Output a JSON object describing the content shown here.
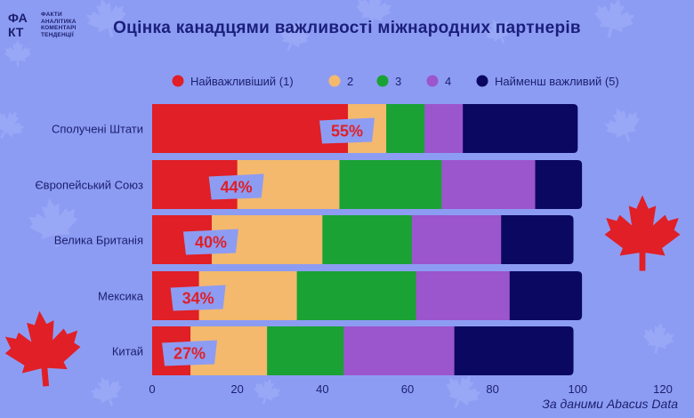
{
  "logo": {
    "mark": "ФАКТ",
    "lines": [
      "ФАКТИ",
      "АНАЛІТИКА",
      "КОМЕНТАРІ",
      "ТЕНДЕНЦІЇ"
    ]
  },
  "title": "Оцінка канадцями важливості міжнародних партнерів",
  "source": "За даними Abacus Data",
  "colors": {
    "background": "#8d9cf3",
    "r1": "#e01f26",
    "r2": "#f4b96d",
    "r3": "#1aa234",
    "r4": "#9b55cd",
    "r5": "#0a0860",
    "label_box": "#8d9cf3",
    "label_text": "#e01f26"
  },
  "chart_data": {
    "type": "bar",
    "orientation": "horizontal",
    "stacked": true,
    "categories": [
      "Сполучені Штати",
      "Європейський Союз",
      "Велика Британія",
      "Мексика",
      "Китай"
    ],
    "series": [
      {
        "name": "Найважливіший (1)",
        "color": "#e01f26",
        "values": [
          46,
          20,
          14,
          11,
          9
        ]
      },
      {
        "name": "2",
        "color": "#f4b96d",
        "values": [
          9,
          24,
          26,
          23,
          18
        ]
      },
      {
        "name": "3",
        "color": "#1aa234",
        "values": [
          9,
          24,
          21,
          28,
          18
        ]
      },
      {
        "name": "4",
        "color": "#9b55cd",
        "values": [
          9,
          22,
          21,
          22,
          26
        ]
      },
      {
        "name": "Найменш важливий (5)",
        "color": "#0a0860",
        "values": [
          27,
          11,
          17,
          17,
          28
        ]
      }
    ],
    "labels": [
      "55%",
      "44%",
      "40%",
      "34%",
      "27%"
    ],
    "xlim": [
      0,
      120
    ],
    "xticks": [
      0,
      20,
      40,
      60,
      80,
      100,
      120
    ],
    "legend_position": "top"
  }
}
